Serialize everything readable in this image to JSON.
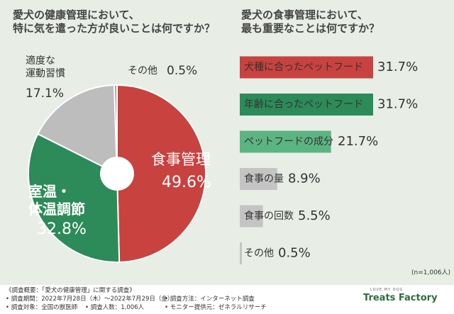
{
  "chart_data": [
    {
      "type": "pie",
      "title": "愛犬の健康管理において、\n特に気を遣った方が良いことは何ですか？",
      "categories": [
        "食事管理",
        "室温・\n体温調節",
        "適度な\n運動習慣",
        "その他"
      ],
      "values": [
        49.6,
        32.8,
        17.1,
        0.5
      ],
      "value_labels": [
        "49.6%",
        "32.8%",
        "17.1%",
        "0.5%"
      ],
      "colors": [
        "#c8423f",
        "#2c8b58",
        "#bdbdbd",
        "#9a9a9a"
      ]
    },
    {
      "type": "hbar",
      "title": "愛犬の食事管理において、\n最も重要なことは何ですか？",
      "categories": [
        "犬種に合ったペットフード",
        "年齢に合ったペットフード",
        "ペットフードの成分",
        "食事の量",
        "食事の回数",
        "その他"
      ],
      "values": [
        31.7,
        31.7,
        21.7,
        8.9,
        5.5,
        0.5
      ],
      "value_labels": [
        "31.7%",
        "31.7%",
        "21.7%",
        "8.9%",
        "5.5%",
        "0.5%"
      ],
      "colors": [
        "#c8423f",
        "#2c8b58",
        "#5bb582",
        "#c4c4c4",
        "#c4c4c4",
        "#c4c4c4"
      ],
      "note": "(n=1,006人)"
    }
  ],
  "survey": {
    "heading": "《調査概要：「愛犬の健康管理」に関する調査》",
    "items": [
      "• 調査期間：2022年7月28日（木）～2022年7月29日（金）",
      "• 調査対象：全国の獣医師",
      "• 調査人数：1,006人",
      "• 調査方法：インターネット調査",
      "• モニター提供元：ゼネラルリサーチ"
    ]
  },
  "brand": {
    "tagline": "LOVE MY DOG",
    "name": "Treats Factory"
  }
}
